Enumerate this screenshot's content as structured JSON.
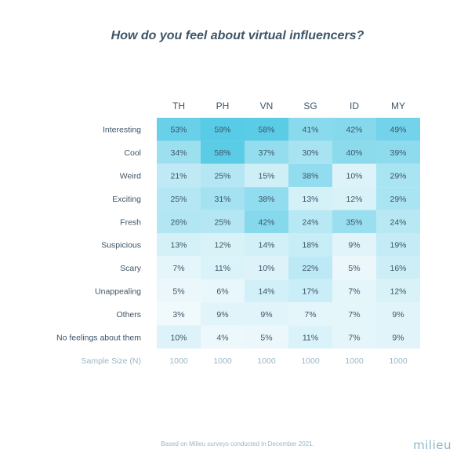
{
  "chart_data": {
    "type": "heatmap",
    "title": "How do you feel about virtual influencers?",
    "columns": [
      "TH",
      "PH",
      "VN",
      "SG",
      "ID",
      "MY"
    ],
    "rows": [
      "Interesting",
      "Cool",
      "Weird",
      "Exciting",
      "Fresh",
      "Suspicious",
      "Scary",
      "Unappealing",
      "Others",
      "No feelings about them"
    ],
    "values": [
      [
        53,
        59,
        58,
        41,
        42,
        49
      ],
      [
        34,
        58,
        37,
        30,
        40,
        39
      ],
      [
        21,
        25,
        15,
        38,
        10,
        29
      ],
      [
        25,
        31,
        38,
        13,
        12,
        29
      ],
      [
        26,
        25,
        42,
        24,
        35,
        24
      ],
      [
        13,
        12,
        14,
        18,
        9,
        19
      ],
      [
        7,
        11,
        10,
        22,
        5,
        16
      ],
      [
        5,
        6,
        14,
        17,
        7,
        12
      ],
      [
        3,
        9,
        9,
        7,
        7,
        9
      ],
      [
        10,
        4,
        5,
        11,
        7,
        9
      ]
    ],
    "value_suffix": "%",
    "sample_size_label": "Sample Size (N)",
    "sample_sizes": [
      1000,
      1000,
      1000,
      1000,
      1000,
      1000
    ],
    "color_low": "#f0f9fc",
    "color_high": "#58cbe6"
  },
  "footnote": "Based on Milieu surveys conducted in December 2021.",
  "logo_text": "milieu"
}
